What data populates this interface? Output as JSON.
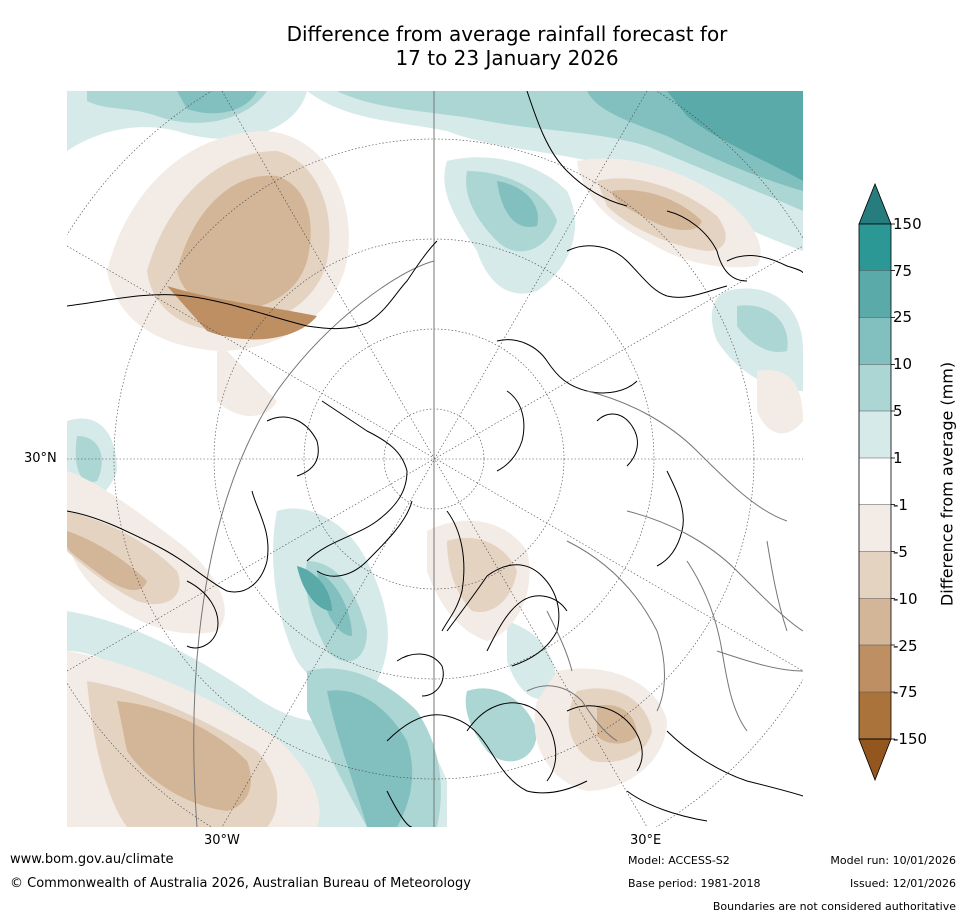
{
  "title": {
    "line1": "Difference from average rainfall forecast for",
    "line2": "17 to 23 January 2026"
  },
  "map": {
    "latitude_label": "30°N",
    "longitude_labels": [
      "30°W",
      "30°E"
    ]
  },
  "colorbar": {
    "title": "Difference from average (mm)",
    "ticks": [
      "150",
      "75",
      "25",
      "10",
      "5",
      "1",
      "-1",
      "-5",
      "-10",
      "-25",
      "-75",
      "-150"
    ],
    "colors": {
      "over": "#277d7d",
      "c75_150": "#2b9896",
      "c25_75": "#5aaaa9",
      "c10_25": "#82c0bf",
      "c5_10": "#abd6d4",
      "c1_5": "#d6eae9",
      "neutral": "#ffffff",
      "d1_5": "#f3ece6",
      "d5_10": "#e5d3c2",
      "d10_25": "#d3b597",
      "d25_75": "#bd8f63",
      "d75_150": "#ab733c",
      "under": "#93561f"
    }
  },
  "footer": {
    "website": "www.bom.gov.au/climate",
    "copyright": "© Commonwealth of Australia 2026, Australian Bureau of Meteorology",
    "model": "Model: ACCESS-S2",
    "base_period": "Base period: 1981-2018",
    "model_run": "Model run: 10/01/2026",
    "issued": "Issued: 12/01/2026",
    "disclaimer": "Boundaries are not considered authoritative"
  }
}
